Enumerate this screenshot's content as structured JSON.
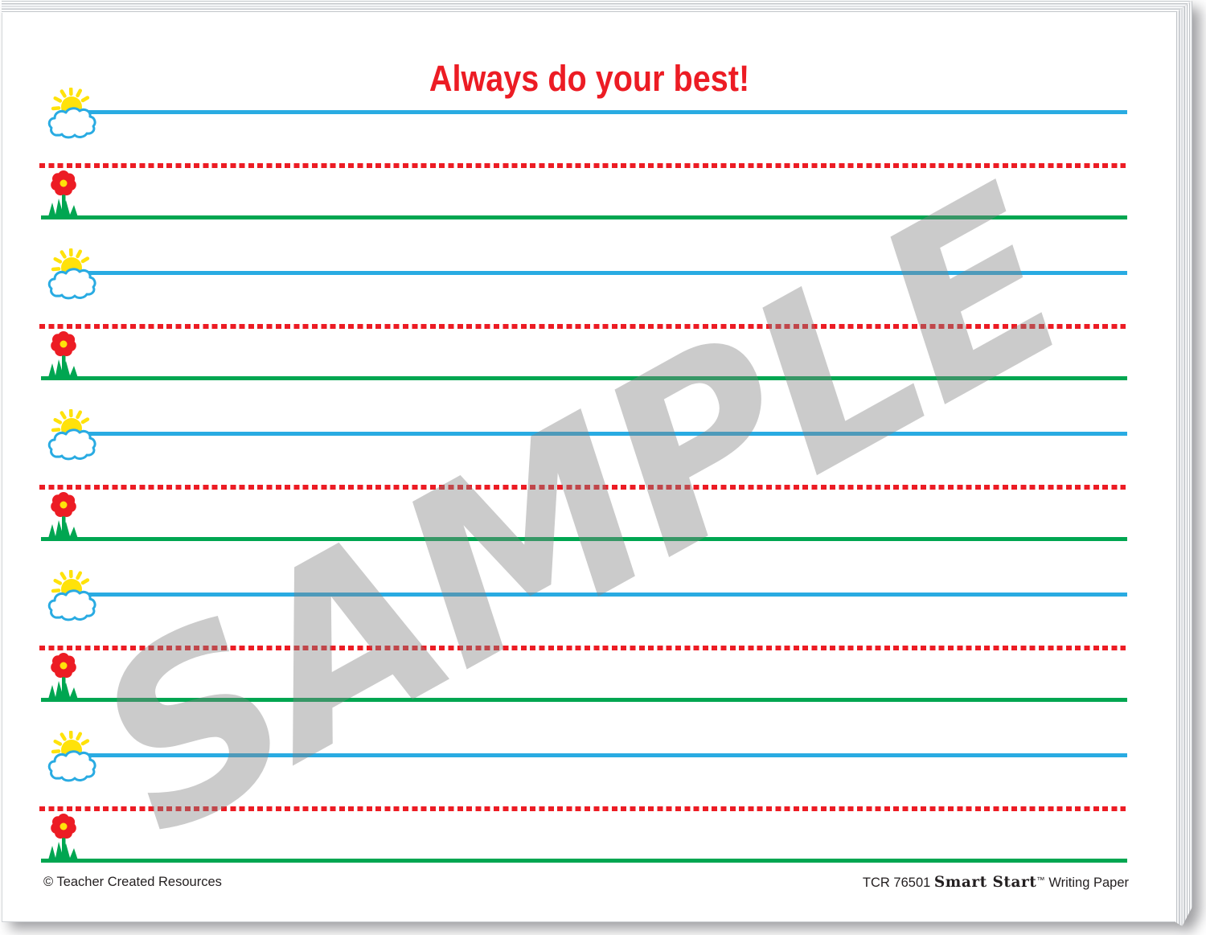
{
  "pad": {
    "title": "Always do your best!",
    "watermark": "SAMPLE",
    "footer": {
      "left": "© Teacher Created Resources",
      "product_code": "TCR 76501",
      "brand": "Smart Start",
      "trademark": "™",
      "product_type": "Writing Paper"
    },
    "lines": {
      "count": 5,
      "top_line_style": "solid",
      "middle_line_style": "dashed",
      "bottom_line_style": "solid",
      "top_line_icon": "sun-cloud-icon",
      "bottom_line_icon": "flower-icon"
    },
    "colors": {
      "title_red": "#EC1C24",
      "line_blue": "#29ABE2",
      "line_red": "#EC1C24",
      "line_green": "#00A651",
      "sun_yellow": "#FFE20A",
      "cloud_outline_blue": "#29ABE2",
      "flower_red": "#EC1C24",
      "flower_yellow": "#FFE20A",
      "stem_green": "#00A651",
      "watermark_gray": "rgba(130,130,130,0.42)",
      "footer_text": "#231F20"
    }
  }
}
